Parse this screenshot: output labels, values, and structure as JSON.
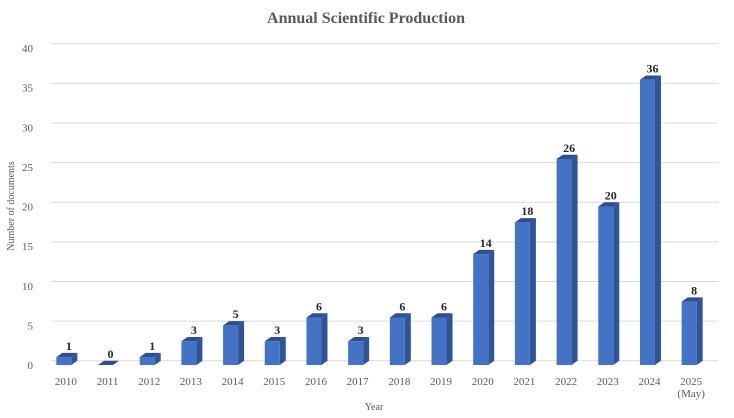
{
  "chart_data": {
    "type": "bar",
    "title": "Annual Scientific Production",
    "xlabel": "Year",
    "ylabel": "Number of documents",
    "ylim": [
      0,
      40
    ],
    "yticks": [
      0,
      5,
      10,
      15,
      20,
      25,
      30,
      35,
      40
    ],
    "grid": true,
    "categories": [
      "2010",
      "2011",
      "2012",
      "2013",
      "2014",
      "2015",
      "2016",
      "2017",
      "2018",
      "2019",
      "2020",
      "2021",
      "2022",
      "2023",
      "2024",
      "2025 (May)"
    ],
    "values": [
      1,
      0,
      1,
      3,
      5,
      3,
      6,
      3,
      6,
      6,
      14,
      18,
      26,
      20,
      36,
      8
    ],
    "data_labels": [
      "1",
      "0",
      "1",
      "3",
      "5",
      "3",
      "6",
      "3",
      "6",
      "6",
      "14",
      "18",
      "26",
      "20",
      "36",
      "8"
    ],
    "colors": {
      "bar_front": "#4472c4",
      "bar_side": "#2f5597",
      "bar_top": "#2e4f8f"
    }
  }
}
